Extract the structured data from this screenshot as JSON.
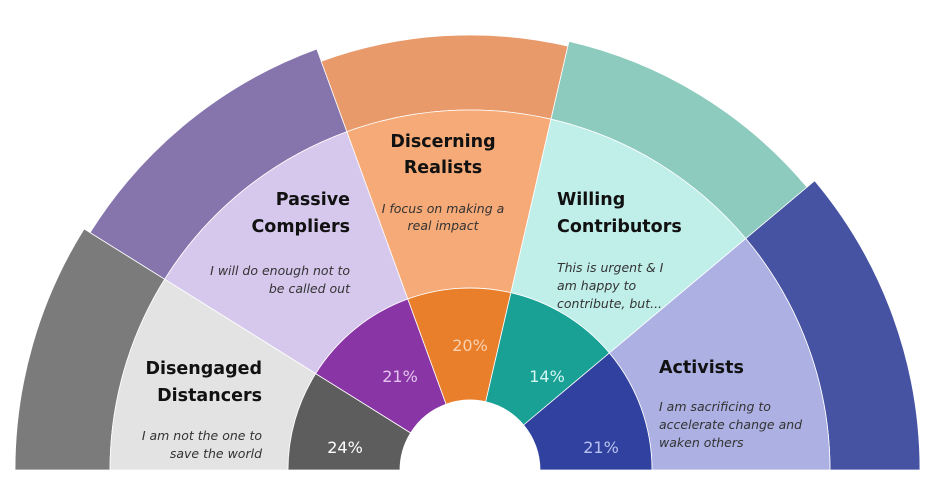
{
  "segments": [
    {
      "id": "disengaged",
      "title": [
        "Disengaged",
        "Distancers"
      ],
      "subtitle": [
        "I am not the one to",
        "save the world"
      ],
      "percent": "24%",
      "colors": {
        "photo": "#7b7b7b",
        "light": "#e3e3e3",
        "ring": "#5d5d5d",
        "pct": "#ffffff"
      }
    },
    {
      "id": "passive",
      "title": [
        "Passive",
        "Compliers"
      ],
      "subtitle": [
        "I will do enough not to",
        "be called out"
      ],
      "percent": "21%",
      "colors": {
        "photo": "#8674ad",
        "light": "#d6c8ec",
        "ring": "#8a35a6",
        "pct": "#e2c4ef"
      }
    },
    {
      "id": "discerning",
      "title": [
        "Discerning",
        "Realists"
      ],
      "subtitle": [
        "I focus on making a",
        "real impact"
      ],
      "percent": "20%",
      "colors": {
        "photo": "#e99a6a",
        "light": "#f6aa78",
        "ring": "#e97e2b",
        "pct": "#fbd2b0"
      }
    },
    {
      "id": "willing",
      "title": [
        "Willing",
        "Contributors"
      ],
      "subtitle": [
        "This is urgent & I",
        "am happy to",
        "contribute, but..."
      ],
      "percent": "14%",
      "colors": {
        "photo": "#8ccbbd",
        "light": "#c0efea",
        "ring": "#1aa196",
        "pct": "#d4f6f2"
      }
    },
    {
      "id": "activists",
      "title": [
        "Activists"
      ],
      "subtitle": [
        "I am sacrificing to",
        "accelerate change and",
        "waken others"
      ],
      "percent": "21%",
      "colors": {
        "photo": "#4653a3",
        "light": "#acb0e2",
        "ring": "#3141a0",
        "pct": "#b9c2f0"
      }
    }
  ]
}
